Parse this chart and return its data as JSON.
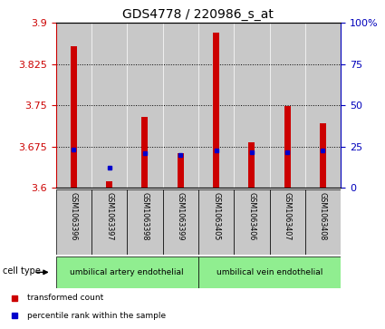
{
  "title": "GDS4778 / 220986_s_at",
  "samples": [
    "GSM1063396",
    "GSM1063397",
    "GSM1063398",
    "GSM1063399",
    "GSM1063405",
    "GSM1063406",
    "GSM1063407",
    "GSM1063408"
  ],
  "red_values": [
    3.858,
    3.612,
    3.728,
    3.663,
    3.882,
    3.682,
    3.748,
    3.717
  ],
  "blue_values": [
    3.67,
    3.637,
    3.663,
    3.66,
    3.668,
    3.665,
    3.665,
    3.668
  ],
  "y_min": 3.6,
  "y_max": 3.9,
  "y_ticks": [
    3.6,
    3.675,
    3.75,
    3.825,
    3.9
  ],
  "y_right_ticks": [
    0,
    25,
    50,
    75,
    100
  ],
  "y_right_labels": [
    "0",
    "25",
    "50",
    "75",
    "100%"
  ],
  "cell_type_groups": [
    {
      "label": "umbilical artery endothelial",
      "samples_idx": [
        0,
        1,
        2,
        3
      ],
      "color": "#90EE90"
    },
    {
      "label": "umbilical vein endothelial",
      "samples_idx": [
        4,
        5,
        6,
        7
      ],
      "color": "#90EE90"
    }
  ],
  "cell_type_label": "cell type",
  "legend_items": [
    {
      "color": "#CC0000",
      "label": "transformed count"
    },
    {
      "color": "#0000CC",
      "label": "percentile rank within the sample"
    }
  ],
  "bar_color": "#CC0000",
  "dot_color": "#0000CC",
  "left_tick_color": "#CC0000",
  "right_tick_color": "#0000BB",
  "bar_width": 0.18,
  "background_plot": "white",
  "background_sample": "#C8C8C8"
}
